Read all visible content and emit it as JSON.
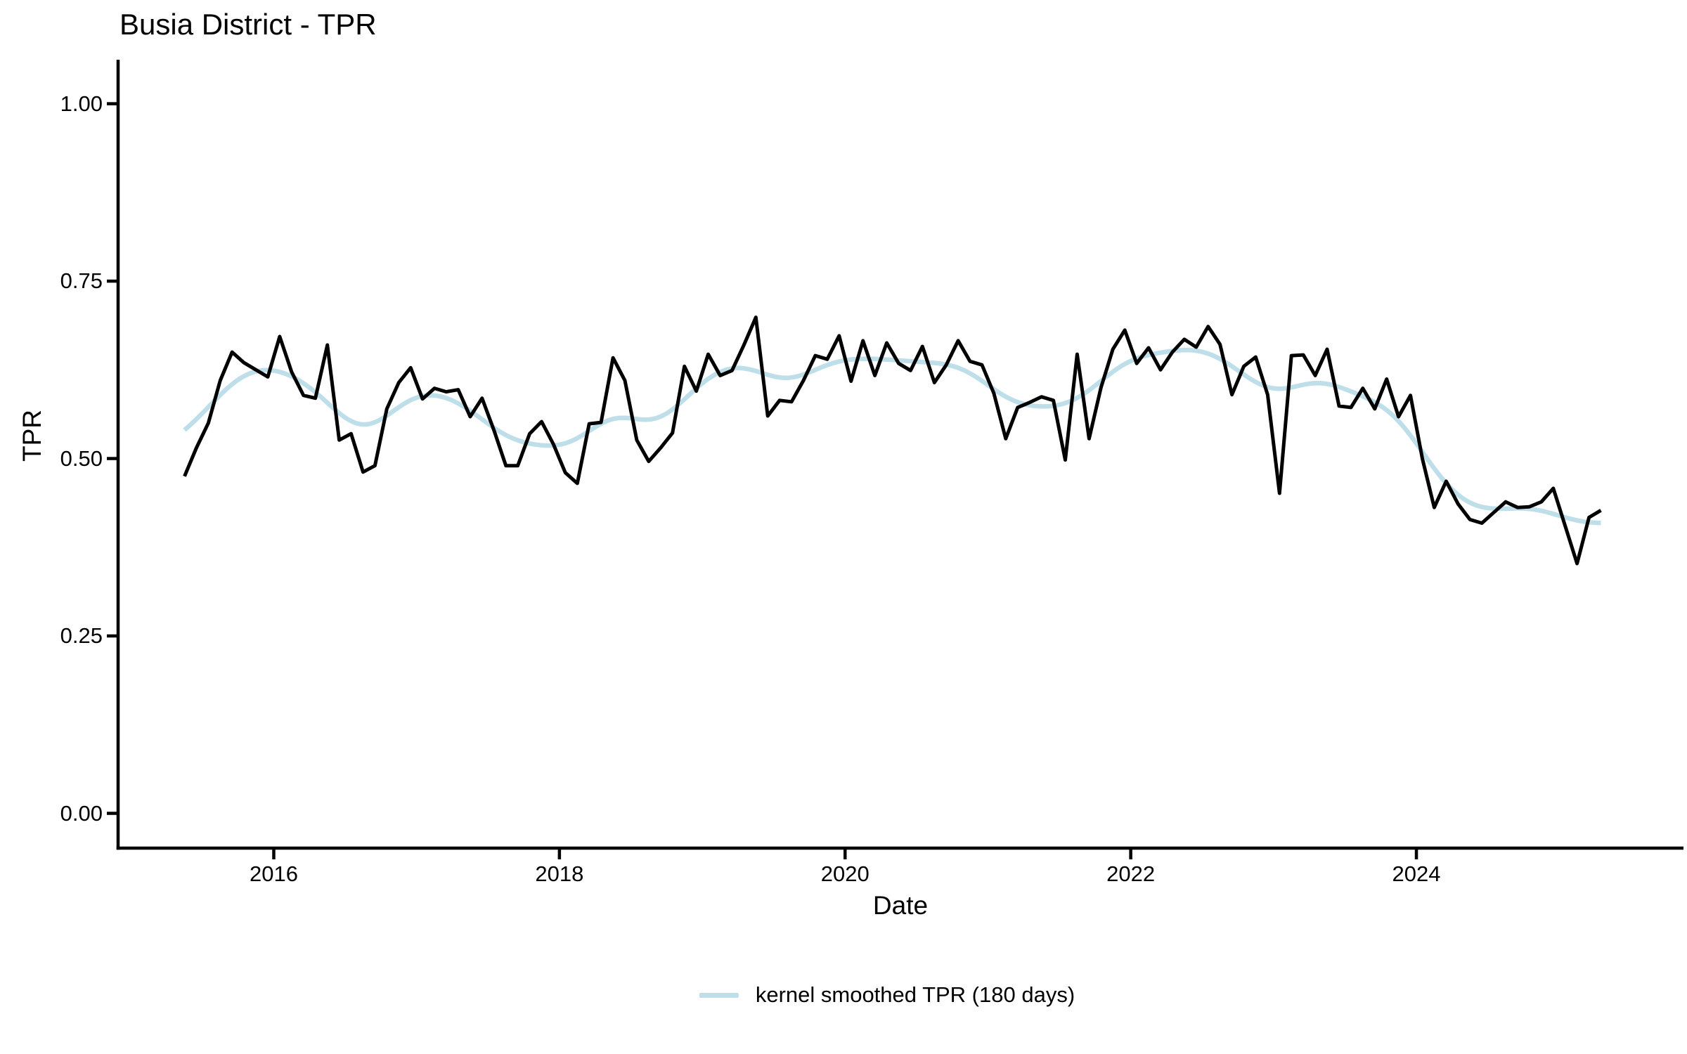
{
  "page": {
    "background": "#ffffff"
  },
  "chart_data": {
    "type": "line",
    "title": "Busia District - TPR",
    "xlabel": "Date",
    "ylabel": "TPR",
    "grid": false,
    "legend_position": "bottom",
    "x_axis": {
      "ticks": [
        2016,
        2018,
        2020,
        2022,
        2024
      ],
      "labels": [
        "2016",
        "2018",
        "2020",
        "2022",
        "2024"
      ],
      "lim": [
        2014.91,
        2025.87
      ]
    },
    "y_axis": {
      "ticks": [
        0,
        0.25,
        0.5,
        0.75,
        1.0
      ],
      "labels": [
        "0.00",
        "0.25",
        "0.50",
        "0.75",
        "1.00"
      ],
      "lim": [
        -0.049,
        1.062
      ]
    },
    "months": [
      "2015-05",
      "2015-06",
      "2015-07",
      "2015-08",
      "2015-09",
      "2015-10",
      "2015-11",
      "2015-12",
      "2016-01",
      "2016-02",
      "2016-03",
      "2016-04",
      "2016-05",
      "2016-06",
      "2016-07",
      "2016-08",
      "2016-09",
      "2016-10",
      "2016-11",
      "2016-12",
      "2017-01",
      "2017-02",
      "2017-03",
      "2017-04",
      "2017-05",
      "2017-06",
      "2017-07",
      "2017-08",
      "2017-09",
      "2017-10",
      "2017-11",
      "2017-12",
      "2018-01",
      "2018-02",
      "2018-03",
      "2018-04",
      "2018-05",
      "2018-06",
      "2018-07",
      "2018-08",
      "2018-09",
      "2018-10",
      "2018-11",
      "2018-12",
      "2019-01",
      "2019-02",
      "2019-03",
      "2019-04",
      "2019-05",
      "2019-06",
      "2019-07",
      "2019-08",
      "2019-09",
      "2019-10",
      "2019-11",
      "2019-12",
      "2020-01",
      "2020-02",
      "2020-03",
      "2020-04",
      "2020-05",
      "2020-06",
      "2020-07",
      "2020-08",
      "2020-09",
      "2020-10",
      "2020-11",
      "2020-12",
      "2021-01",
      "2021-02",
      "2021-03",
      "2021-04",
      "2021-05",
      "2021-06",
      "2021-07",
      "2021-08",
      "2021-09",
      "2021-10",
      "2021-11",
      "2021-12",
      "2022-01",
      "2022-02",
      "2022-03",
      "2022-04",
      "2022-05",
      "2022-06",
      "2022-07",
      "2022-08",
      "2022-09",
      "2022-10",
      "2022-11",
      "2022-12",
      "2023-01",
      "2023-02",
      "2023-03",
      "2023-04",
      "2023-05",
      "2023-06",
      "2023-07",
      "2023-08",
      "2023-09",
      "2023-10",
      "2023-11",
      "2023-12",
      "2024-01",
      "2024-02",
      "2024-03",
      "2024-04",
      "2024-05",
      "2024-06",
      "2024-07",
      "2024-08",
      "2024-09",
      "2024-10",
      "2024-11",
      "2024-12",
      "2025-01",
      "2025-02",
      "2025-03",
      "2025-04"
    ],
    "series": [
      {
        "name": "TPR",
        "kind": "raw",
        "color": "#000000",
        "stroke_width": 5,
        "values": [
          0.475,
          0.515,
          0.55,
          0.61,
          0.65,
          0.635,
          0.625,
          0.615,
          0.672,
          0.622,
          0.589,
          0.585,
          0.66,
          0.526,
          0.535,
          0.481,
          0.49,
          0.57,
          0.607,
          0.628,
          0.584,
          0.599,
          0.594,
          0.597,
          0.559,
          0.585,
          0.54,
          0.49,
          0.49,
          0.535,
          0.552,
          0.52,
          0.48,
          0.465,
          0.549,
          0.551,
          0.642,
          0.61,
          0.526,
          0.496,
          0.515,
          0.536,
          0.63,
          0.595,
          0.647,
          0.617,
          0.624,
          0.66,
          0.699,
          0.56,
          0.582,
          0.58,
          0.61,
          0.645,
          0.64,
          0.673,
          0.609,
          0.666,
          0.617,
          0.663,
          0.634,
          0.624,
          0.658,
          0.607,
          0.632,
          0.666,
          0.637,
          0.632,
          0.592,
          0.528,
          0.572,
          0.579,
          0.587,
          0.582,
          0.498,
          0.647,
          0.528,
          0.6,
          0.654,
          0.681,
          0.634,
          0.656,
          0.625,
          0.65,
          0.668,
          0.657,
          0.686,
          0.661,
          0.59,
          0.63,
          0.643,
          0.59,
          0.451,
          0.645,
          0.646,
          0.617,
          0.654,
          0.574,
          0.572,
          0.599,
          0.57,
          0.612,
          0.559,
          0.589,
          0.5,
          0.431,
          0.468,
          0.436,
          0.414,
          0.409,
          0.424,
          0.439,
          0.431,
          0.432,
          0.439,
          0.458,
          0.405,
          0.352,
          0.417,
          0.427
        ]
      },
      {
        "name": "kernel smoothed TPR (180 days)",
        "kind": "kernel_smooth",
        "derived_from": "TPR",
        "bandwidth_days": 180,
        "color": "#BEDFEA",
        "stroke_width": 6.5
      }
    ],
    "legend": {
      "entries": [
        {
          "label": "kernel smoothed TPR (180 days)",
          "color": "#BEDFEA"
        }
      ]
    }
  }
}
